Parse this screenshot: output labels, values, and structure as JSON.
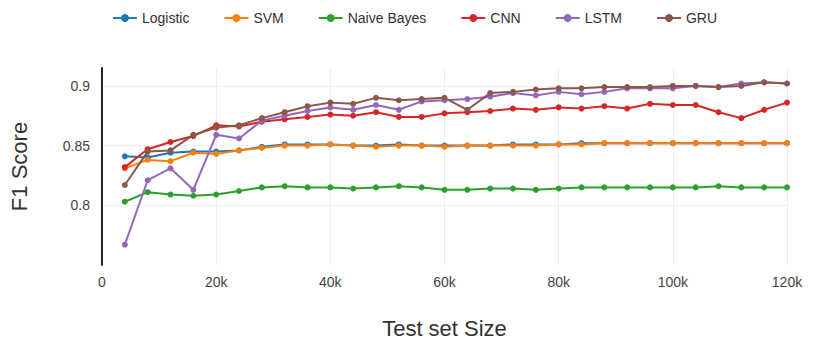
{
  "chart_data": {
    "type": "line",
    "x_label": "Test set Size",
    "y_label": "F1 Score",
    "x": [
      4000,
      8000,
      12000,
      16000,
      20000,
      24000,
      28000,
      32000,
      36000,
      40000,
      44000,
      48000,
      52000,
      56000,
      60000,
      64000,
      68000,
      72000,
      76000,
      80000,
      84000,
      88000,
      92000,
      96000,
      100000,
      104000,
      108000,
      112000,
      116000,
      120000
    ],
    "series": [
      {
        "name": "Logistic",
        "color": "#1f77b4",
        "values": [
          0.841,
          0.84,
          0.844,
          0.845,
          0.845,
          0.846,
          0.849,
          0.851,
          0.851,
          0.851,
          0.85,
          0.85,
          0.851,
          0.85,
          0.85,
          0.85,
          0.85,
          0.851,
          0.851,
          0.851,
          0.852,
          0.852,
          0.852,
          0.852,
          0.852,
          0.852,
          0.852,
          0.852,
          0.852,
          0.852
        ]
      },
      {
        "name": "SVM",
        "color": "#ff7f0e",
        "values": [
          0.831,
          0.838,
          0.837,
          0.844,
          0.843,
          0.846,
          0.848,
          0.85,
          0.85,
          0.851,
          0.85,
          0.849,
          0.85,
          0.85,
          0.849,
          0.85,
          0.85,
          0.85,
          0.85,
          0.851,
          0.851,
          0.852,
          0.852,
          0.852,
          0.852,
          0.852,
          0.852,
          0.852,
          0.852,
          0.852
        ]
      },
      {
        "name": "Naive Bayes",
        "color": "#2ca02c",
        "values": [
          0.803,
          0.811,
          0.809,
          0.808,
          0.809,
          0.812,
          0.815,
          0.816,
          0.815,
          0.815,
          0.814,
          0.815,
          0.816,
          0.815,
          0.813,
          0.813,
          0.814,
          0.814,
          0.813,
          0.814,
          0.815,
          0.815,
          0.815,
          0.815,
          0.815,
          0.815,
          0.816,
          0.815,
          0.815,
          0.815
        ]
      },
      {
        "name": "CNN",
        "color": "#d62728",
        "values": [
          0.832,
          0.847,
          0.853,
          0.858,
          0.867,
          0.866,
          0.87,
          0.872,
          0.874,
          0.876,
          0.875,
          0.878,
          0.874,
          0.874,
          0.877,
          0.878,
          0.879,
          0.881,
          0.88,
          0.882,
          0.881,
          0.883,
          0.881,
          0.885,
          0.884,
          0.884,
          0.878,
          0.873,
          0.88,
          0.886
        ]
      },
      {
        "name": "LSTM",
        "color": "#9467bd",
        "values": [
          0.767,
          0.821,
          0.831,
          0.813,
          0.859,
          0.856,
          0.871,
          0.875,
          0.879,
          0.882,
          0.88,
          0.884,
          0.88,
          0.887,
          0.888,
          0.889,
          0.891,
          0.894,
          0.892,
          0.895,
          0.893,
          0.895,
          0.898,
          0.898,
          0.898,
          0.9,
          0.899,
          0.902,
          0.903,
          0.902
        ]
      },
      {
        "name": "GRU",
        "color": "#8c564b",
        "values": [
          0.817,
          0.845,
          0.846,
          0.859,
          0.865,
          0.867,
          0.873,
          0.878,
          0.883,
          0.886,
          0.885,
          0.89,
          0.888,
          0.889,
          0.89,
          0.88,
          0.894,
          0.895,
          0.897,
          0.898,
          0.898,
          0.899,
          0.899,
          0.899,
          0.9,
          0.9,
          0.899,
          0.9,
          0.903,
          0.902
        ]
      }
    ],
    "xlim": [
      0,
      120000
    ],
    "xticks": [
      0,
      {
        "value": 20000,
        "label": "20k"
      },
      {
        "value": 40000,
        "label": "40k"
      },
      {
        "value": 60000,
        "label": "60k"
      },
      {
        "value": 80000,
        "label": "80k"
      },
      {
        "value": 100000,
        "label": "100k"
      },
      {
        "value": 120000,
        "label": "120k"
      }
    ],
    "ylim": [
      0.75,
      0.915
    ],
    "yticks": [
      0.8,
      0.85,
      0.9
    ],
    "grid": true,
    "legend": "top",
    "marker": "circle"
  }
}
